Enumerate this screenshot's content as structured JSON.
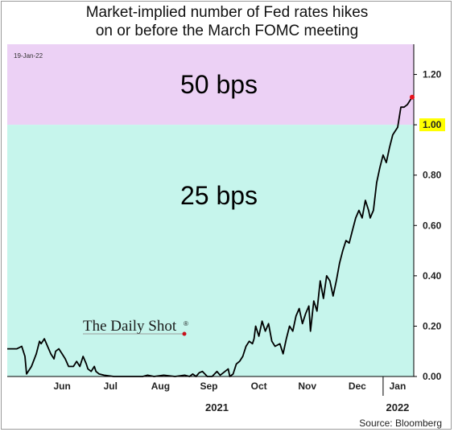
{
  "chart_data": {
    "type": "line",
    "title_line1": "Market-implied number of Fed rates hikes",
    "title_line2": "on or before the March FOMC meeting",
    "as_of": "19-Jan-22",
    "zones": [
      {
        "label": "50 bps",
        "from": 1.0,
        "to": 1.32,
        "color": "#ecd1f5"
      },
      {
        "label": "25 bps",
        "from": 0.0,
        "to": 1.0,
        "color": "#c6f5ec"
      }
    ],
    "ylim": [
      0,
      1.32
    ],
    "y_ticks": [
      "0.00",
      "0.20",
      "0.40",
      "0.60",
      "0.80",
      "1.00",
      "1.20"
    ],
    "highlight_tick": "1.00",
    "highlight_color": "#ffff00",
    "x_range": [
      "2021-05-13",
      "2022-01-20"
    ],
    "month_labels": [
      {
        "label": "Jun",
        "date": "2021-06-16"
      },
      {
        "label": "Jul",
        "date": "2021-07-16"
      },
      {
        "label": "Aug",
        "date": "2021-08-16"
      },
      {
        "label": "Sep",
        "date": "2021-09-15"
      },
      {
        "label": "Oct",
        "date": "2021-10-16"
      },
      {
        "label": "Nov",
        "date": "2021-11-15"
      },
      {
        "label": "Dec",
        "date": "2021-12-16"
      },
      {
        "label": "Jan",
        "date": "2022-01-10"
      }
    ],
    "year_labels": [
      {
        "label": "2021",
        "date": "2021-09-20"
      },
      {
        "label": "2022",
        "date": "2022-01-10"
      }
    ],
    "year_divider_date": "2022-01-01",
    "series": [
      {
        "color": "#000000",
        "end_marker_color": "#e8141c",
        "points": [
          [
            "2021-05-13",
            0.11
          ],
          [
            "2021-05-19",
            0.11
          ],
          [
            "2021-05-22",
            0.12
          ],
          [
            "2021-05-24",
            0.08
          ],
          [
            "2021-05-25",
            0.01
          ],
          [
            "2021-05-28",
            0.04
          ],
          [
            "2021-05-31",
            0.09
          ],
          [
            "2021-06-02",
            0.14
          ],
          [
            "2021-06-03",
            0.13
          ],
          [
            "2021-06-05",
            0.15
          ],
          [
            "2021-06-07",
            0.12
          ],
          [
            "2021-06-09",
            0.09
          ],
          [
            "2021-06-11",
            0.07
          ],
          [
            "2021-06-12",
            0.1
          ],
          [
            "2021-06-14",
            0.11
          ],
          [
            "2021-06-16",
            0.09
          ],
          [
            "2021-06-18",
            0.07
          ],
          [
            "2021-06-20",
            0.04
          ],
          [
            "2021-06-23",
            0.04
          ],
          [
            "2021-06-25",
            0.06
          ],
          [
            "2021-06-27",
            0.04
          ],
          [
            "2021-06-29",
            0.08
          ],
          [
            "2021-07-01",
            0.05
          ],
          [
            "2021-07-02",
            0.03
          ],
          [
            "2021-07-04",
            0.02
          ],
          [
            "2021-07-06",
            0.04
          ],
          [
            "2021-07-07",
            0.02
          ],
          [
            "2021-07-09",
            0.01
          ],
          [
            "2021-07-12",
            0.005
          ],
          [
            "2021-07-18",
            0.0
          ],
          [
            "2021-08-05",
            0.0
          ],
          [
            "2021-08-08",
            0.005
          ],
          [
            "2021-08-12",
            0.0
          ],
          [
            "2021-08-18",
            0.005
          ],
          [
            "2021-08-25",
            0.0
          ],
          [
            "2021-08-31",
            0.005
          ],
          [
            "2021-09-03",
            0.0
          ],
          [
            "2021-09-05",
            0.01
          ],
          [
            "2021-09-07",
            0.0
          ],
          [
            "2021-09-09",
            0.015
          ],
          [
            "2021-09-11",
            0.02
          ],
          [
            "2021-09-14",
            0.0
          ],
          [
            "2021-09-17",
            0.0
          ],
          [
            "2021-09-20",
            0.02
          ],
          [
            "2021-09-22",
            0.005
          ],
          [
            "2021-09-24",
            0.015
          ],
          [
            "2021-09-27",
            0.03
          ],
          [
            "2021-09-28",
            0.0
          ],
          [
            "2021-09-30",
            0.01
          ],
          [
            "2021-10-02",
            0.05
          ],
          [
            "2021-10-04",
            0.06
          ],
          [
            "2021-10-06",
            0.08
          ],
          [
            "2021-10-08",
            0.12
          ],
          [
            "2021-10-10",
            0.14
          ],
          [
            "2021-10-12",
            0.13
          ],
          [
            "2021-10-13",
            0.15
          ],
          [
            "2021-10-14",
            0.2
          ],
          [
            "2021-10-16",
            0.16
          ],
          [
            "2021-10-18",
            0.22
          ],
          [
            "2021-10-20",
            0.18
          ],
          [
            "2021-10-22",
            0.21
          ],
          [
            "2021-10-24",
            0.14
          ],
          [
            "2021-10-26",
            0.12
          ],
          [
            "2021-10-29",
            0.13
          ],
          [
            "2021-10-31",
            0.09
          ],
          [
            "2021-11-02",
            0.15
          ],
          [
            "2021-11-04",
            0.2
          ],
          [
            "2021-11-06",
            0.18
          ],
          [
            "2021-11-08",
            0.24
          ],
          [
            "2021-11-10",
            0.27
          ],
          [
            "2021-11-12",
            0.21
          ],
          [
            "2021-11-14",
            0.25
          ],
          [
            "2021-11-16",
            0.28
          ],
          [
            "2021-11-17",
            0.18
          ],
          [
            "2021-11-19",
            0.3
          ],
          [
            "2021-11-21",
            0.26
          ],
          [
            "2021-11-23",
            0.38
          ],
          [
            "2021-11-25",
            0.31
          ],
          [
            "2021-11-27",
            0.4
          ],
          [
            "2021-11-29",
            0.38
          ],
          [
            "2021-12-01",
            0.32
          ],
          [
            "2021-12-03",
            0.38
          ],
          [
            "2021-12-05",
            0.45
          ],
          [
            "2021-12-07",
            0.5
          ],
          [
            "2021-12-09",
            0.54
          ],
          [
            "2021-12-11",
            0.53
          ],
          [
            "2021-12-13",
            0.58
          ],
          [
            "2021-12-15",
            0.63
          ],
          [
            "2021-12-17",
            0.66
          ],
          [
            "2021-12-19",
            0.63
          ],
          [
            "2021-12-21",
            0.7
          ],
          [
            "2021-12-23",
            0.66
          ],
          [
            "2021-12-24",
            0.63
          ],
          [
            "2021-12-26",
            0.66
          ],
          [
            "2021-12-28",
            0.77
          ],
          [
            "2021-12-30",
            0.83
          ],
          [
            "2022-01-01",
            0.88
          ],
          [
            "2022-01-03",
            0.85
          ],
          [
            "2022-01-05",
            0.91
          ],
          [
            "2022-01-07",
            0.96
          ],
          [
            "2022-01-10",
            0.99
          ],
          [
            "2022-01-12",
            1.07
          ],
          [
            "2022-01-14",
            1.07
          ],
          [
            "2022-01-16",
            1.08
          ],
          [
            "2022-01-19",
            1.11
          ]
        ]
      }
    ],
    "watermark": "The Daily Shot",
    "watermark_mark": "®",
    "source": "Source: Bloomberg"
  }
}
